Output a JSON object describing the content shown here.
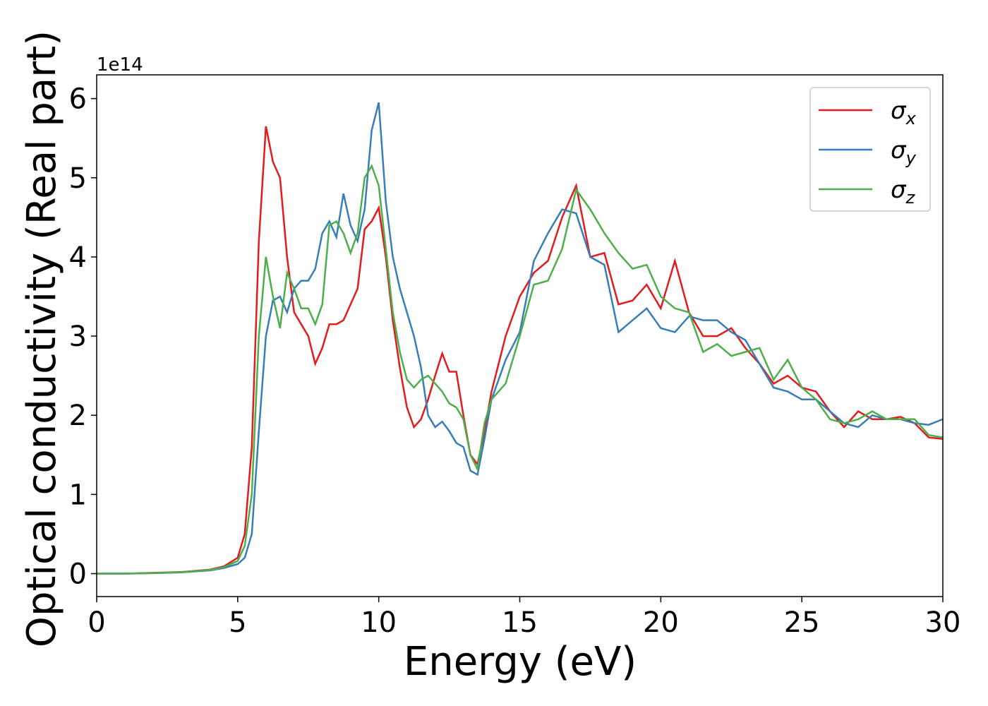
{
  "chart_data": {
    "type": "line",
    "xlabel": "Energy (eV)",
    "ylabel": "Optical conductivity (Real part)",
    "y_offset_label": "1e14",
    "xlim": [
      0,
      30
    ],
    "xticks": [
      0,
      5,
      10,
      15,
      20,
      25,
      30
    ],
    "ylim": [
      -0.29,
      6.3
    ],
    "yticks": [
      0,
      1,
      2,
      3,
      4,
      5,
      6
    ],
    "legend": "upper right",
    "x": [
      0,
      1,
      2,
      3,
      4,
      4.5,
      5,
      5.25,
      5.5,
      5.75,
      6,
      6.25,
      6.5,
      6.75,
      7,
      7.25,
      7.5,
      7.75,
      8,
      8.25,
      8.5,
      8.75,
      9,
      9.25,
      9.5,
      9.75,
      10,
      10.25,
      10.5,
      10.75,
      11,
      11.25,
      11.5,
      11.75,
      12,
      12.25,
      12.5,
      12.75,
      13,
      13.25,
      13.5,
      13.75,
      14,
      14.5,
      15,
      15.5,
      16,
      16.5,
      17,
      17.5,
      18,
      18.5,
      19,
      19.5,
      20,
      20.5,
      21,
      21.5,
      22,
      22.5,
      23,
      23.5,
      24,
      24.5,
      25,
      25.5,
      26,
      26.5,
      27,
      27.5,
      28,
      28.5,
      29,
      29.5,
      30
    ],
    "series": [
      {
        "name": "σx",
        "color": "#e41a1c",
        "values": [
          0,
          0,
          0.01,
          0.02,
          0.05,
          0.09,
          0.2,
          0.5,
          1.6,
          4.2,
          5.65,
          5.2,
          5.0,
          4.0,
          3.3,
          3.15,
          3.0,
          2.65,
          2.85,
          3.15,
          3.15,
          3.2,
          3.4,
          3.6,
          4.35,
          4.45,
          4.62,
          4.0,
          3.2,
          2.6,
          2.1,
          1.85,
          1.95,
          2.2,
          2.5,
          2.78,
          2.55,
          2.55,
          2.0,
          1.5,
          1.38,
          1.8,
          2.3,
          3.0,
          3.5,
          3.8,
          3.95,
          4.5,
          4.9,
          4.0,
          4.05,
          3.4,
          3.45,
          3.65,
          3.35,
          3.95,
          3.3,
          3.0,
          3.0,
          3.1,
          2.85,
          2.65,
          2.4,
          2.5,
          2.35,
          2.3,
          2.05,
          1.85,
          2.05,
          1.95,
          1.95,
          1.98,
          1.9,
          1.72,
          1.7
        ]
      },
      {
        "name": "σy",
        "color": "#377eb8",
        "values": [
          0,
          0,
          0.005,
          0.015,
          0.04,
          0.07,
          0.12,
          0.2,
          0.5,
          1.8,
          3.0,
          3.45,
          3.5,
          3.3,
          3.6,
          3.7,
          3.7,
          3.85,
          4.3,
          4.45,
          4.25,
          4.8,
          4.4,
          4.2,
          4.6,
          5.6,
          5.95,
          4.7,
          4.0,
          3.6,
          3.3,
          3.0,
          2.6,
          2.0,
          1.85,
          1.92,
          1.8,
          1.65,
          1.6,
          1.3,
          1.25,
          1.7,
          2.2,
          2.7,
          3.05,
          3.95,
          4.3,
          4.6,
          4.55,
          4.0,
          3.9,
          3.05,
          3.2,
          3.35,
          3.1,
          3.05,
          3.25,
          3.2,
          3.2,
          3.05,
          2.95,
          2.65,
          2.35,
          2.3,
          2.2,
          2.2,
          2.05,
          1.9,
          1.85,
          2.0,
          1.95,
          1.95,
          1.9,
          1.88,
          1.95
        ]
      },
      {
        "name": "σz",
        "color": "#4daf4a",
        "values": [
          0,
          0,
          0.007,
          0.018,
          0.045,
          0.08,
          0.16,
          0.35,
          1.0,
          3.0,
          4.0,
          3.5,
          3.1,
          3.8,
          3.6,
          3.35,
          3.35,
          3.15,
          3.4,
          4.4,
          4.45,
          4.3,
          4.05,
          4.3,
          5.0,
          5.15,
          4.9,
          4.1,
          3.3,
          2.8,
          2.45,
          2.35,
          2.45,
          2.5,
          2.4,
          2.3,
          2.15,
          2.1,
          1.95,
          1.5,
          1.32,
          1.9,
          2.2,
          2.4,
          3.0,
          3.65,
          3.7,
          4.1,
          4.85,
          4.6,
          4.3,
          4.05,
          3.85,
          3.9,
          3.5,
          3.35,
          3.3,
          2.8,
          2.9,
          2.75,
          2.8,
          2.85,
          2.45,
          2.7,
          2.35,
          2.2,
          1.95,
          1.9,
          1.95,
          2.05,
          1.95,
          1.95,
          1.95,
          1.75,
          1.72
        ]
      }
    ]
  }
}
